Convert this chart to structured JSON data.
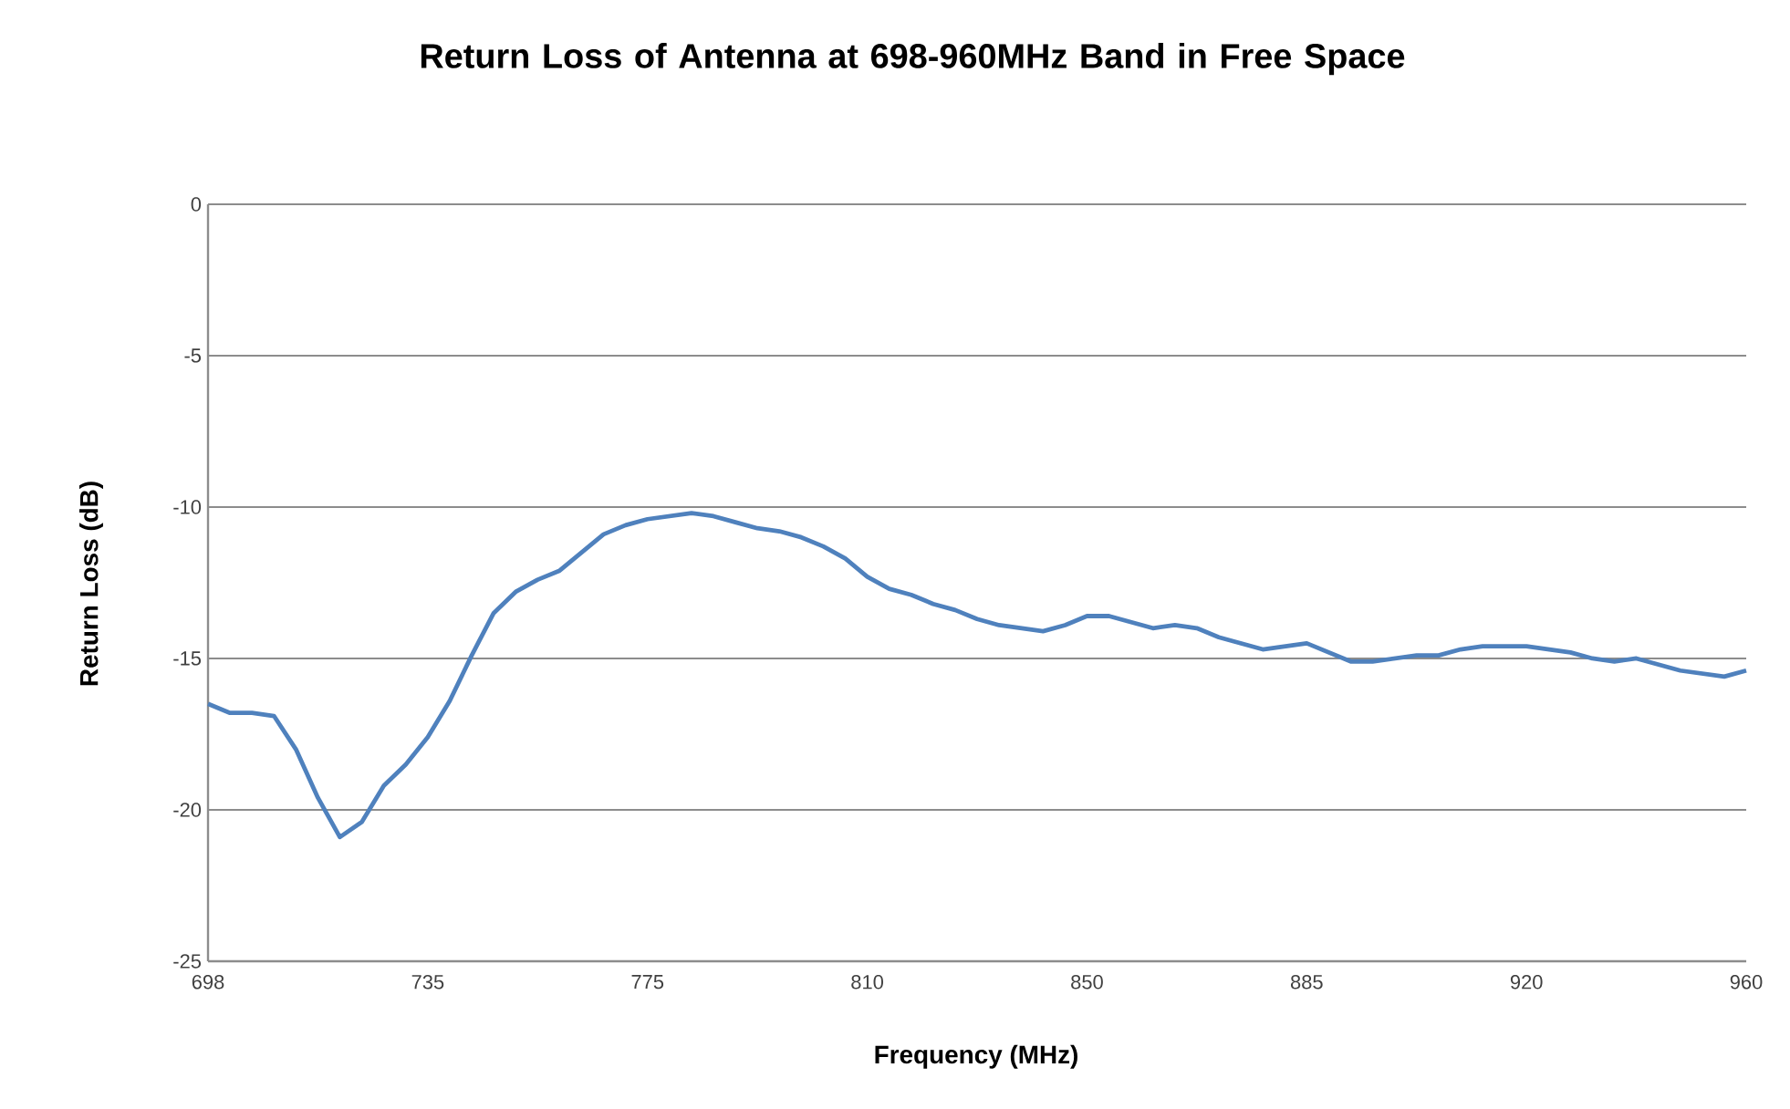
{
  "chart_data": {
    "type": "line",
    "title": "Return Loss of Antenna at 698-960MHz Band in Free Space",
    "xlabel": "Frequency  (MHz)",
    "ylabel": "Return Loss (dB)",
    "categories": [
      "698",
      null,
      null,
      null,
      null,
      null,
      null,
      null,
      null,
      null,
      "735",
      null,
      null,
      null,
      null,
      null,
      null,
      null,
      null,
      null,
      "775",
      null,
      null,
      null,
      null,
      null,
      null,
      null,
      null,
      null,
      "810",
      null,
      null,
      null,
      null,
      null,
      null,
      null,
      null,
      null,
      "850",
      null,
      null,
      null,
      null,
      null,
      null,
      null,
      null,
      null,
      "885",
      null,
      null,
      null,
      null,
      null,
      null,
      null,
      null,
      null,
      "920",
      null,
      null,
      null,
      null,
      null,
      null,
      null,
      null,
      null,
      "960"
    ],
    "series": [
      {
        "color": "#4f81bd",
        "values": [
          -16.5,
          -16.8,
          -16.8,
          -16.9,
          -18.0,
          -19.6,
          -20.9,
          -20.4,
          -19.2,
          -18.5,
          -17.6,
          -16.4,
          -14.9,
          -13.5,
          -12.8,
          -12.4,
          -12.1,
          -11.5,
          -10.9,
          -10.6,
          -10.4,
          -10.3,
          -10.2,
          -10.3,
          -10.5,
          -10.7,
          -10.8,
          -11.0,
          -11.3,
          -11.7,
          -12.3,
          -12.7,
          -12.9,
          -13.2,
          -13.4,
          -13.7,
          -13.9,
          -14.0,
          -14.1,
          -13.9,
          -13.6,
          -13.6,
          -13.8,
          -14.0,
          -13.9,
          -14.0,
          -14.3,
          -14.5,
          -14.7,
          -14.6,
          -14.5,
          -14.8,
          -15.1,
          -15.1,
          -15.0,
          -14.9,
          -14.9,
          -14.7,
          -14.6,
          -14.6,
          -14.6,
          -14.7,
          -14.8,
          -15.0,
          -15.1,
          -15.0,
          -15.2,
          -15.4,
          -15.5,
          -15.6,
          -15.4
        ]
      }
    ],
    "ylim": [
      -25,
      0
    ],
    "yticks": [
      -25,
      -20,
      -15,
      -10,
      -5,
      0
    ],
    "grid": "y",
    "line_style": "solid",
    "marker": "none"
  }
}
